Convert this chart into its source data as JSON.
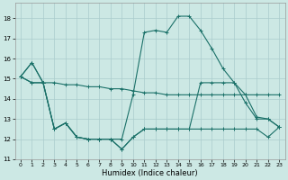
{
  "xlabel": "Humidex (Indice chaleur)",
  "background_color": "#cce8e4",
  "grid_color": "#aacccc",
  "line_color": "#1a7068",
  "xlim": [
    -0.5,
    23.5
  ],
  "ylim": [
    11,
    18.75
  ],
  "yticks": [
    11,
    12,
    13,
    14,
    15,
    16,
    17,
    18
  ],
  "xticks": [
    0,
    1,
    2,
    3,
    4,
    5,
    6,
    7,
    8,
    9,
    10,
    11,
    12,
    13,
    14,
    15,
    16,
    17,
    18,
    19,
    20,
    21,
    22,
    23
  ],
  "series": [
    [
      15.1,
      15.8,
      14.8,
      14.8,
      14.7,
      14.7,
      14.6,
      14.6,
      14.5,
      14.5,
      14.4,
      14.3,
      14.3,
      14.2,
      14.2,
      14.2,
      14.2,
      14.2,
      14.2,
      14.2,
      14.2,
      14.2,
      14.2,
      14.2
    ],
    [
      15.1,
      14.8,
      14.8,
      12.5,
      12.8,
      12.1,
      12.0,
      12.0,
      12.0,
      11.5,
      12.1,
      12.5,
      12.5,
      12.5,
      12.5,
      12.5,
      12.5,
      12.5,
      12.5,
      12.5,
      12.5,
      12.5,
      12.1,
      12.6
    ],
    [
      15.1,
      15.8,
      14.8,
      12.5,
      12.8,
      12.1,
      12.0,
      12.0,
      12.0,
      12.0,
      14.2,
      17.3,
      17.4,
      17.3,
      18.1,
      18.1,
      17.4,
      16.5,
      15.5,
      14.8,
      14.2,
      13.1,
      13.0,
      12.6
    ],
    [
      15.1,
      14.8,
      14.8,
      12.5,
      12.8,
      12.1,
      12.0,
      12.0,
      12.0,
      11.5,
      12.1,
      12.5,
      12.5,
      12.5,
      12.5,
      12.5,
      14.8,
      14.8,
      14.8,
      14.8,
      13.8,
      13.0,
      13.0,
      12.6
    ]
  ]
}
